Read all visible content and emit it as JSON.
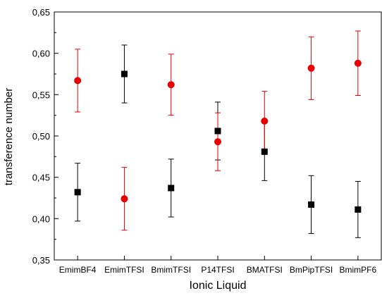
{
  "chart_data": {
    "type": "scatter",
    "categories": [
      "EmimBF4",
      "EmimTFSI",
      "BmimTFSI",
      "P14TFSI",
      "BMATFSI",
      "BmPipTFSI",
      "BmimPF6"
    ],
    "xlabel": "Ionic Liquid",
    "ylabel": "transference number",
    "ylim": [
      0.35,
      0.65
    ],
    "y_ticks": [
      "0,35",
      "0,40",
      "0,45",
      "0,50",
      "0,55",
      "0,60",
      "0,65"
    ],
    "grid": false,
    "legend": "none",
    "series": [
      {
        "color": "#000000",
        "marker": "square",
        "values": [
          0.432,
          0.575,
          0.437,
          0.506,
          0.481,
          0.417,
          0.411
        ],
        "error": [
          0.035,
          0.035,
          0.035,
          0.035,
          0.035,
          0.035,
          0.034
        ]
      },
      {
        "color": "#e60000",
        "marker": "circle",
        "values": [
          0.567,
          0.424,
          0.562,
          0.493,
          0.518,
          0.582,
          0.588
        ],
        "error": [
          0.038,
          0.038,
          0.037,
          0.035,
          0.036,
          0.038,
          0.039
        ]
      }
    ]
  }
}
